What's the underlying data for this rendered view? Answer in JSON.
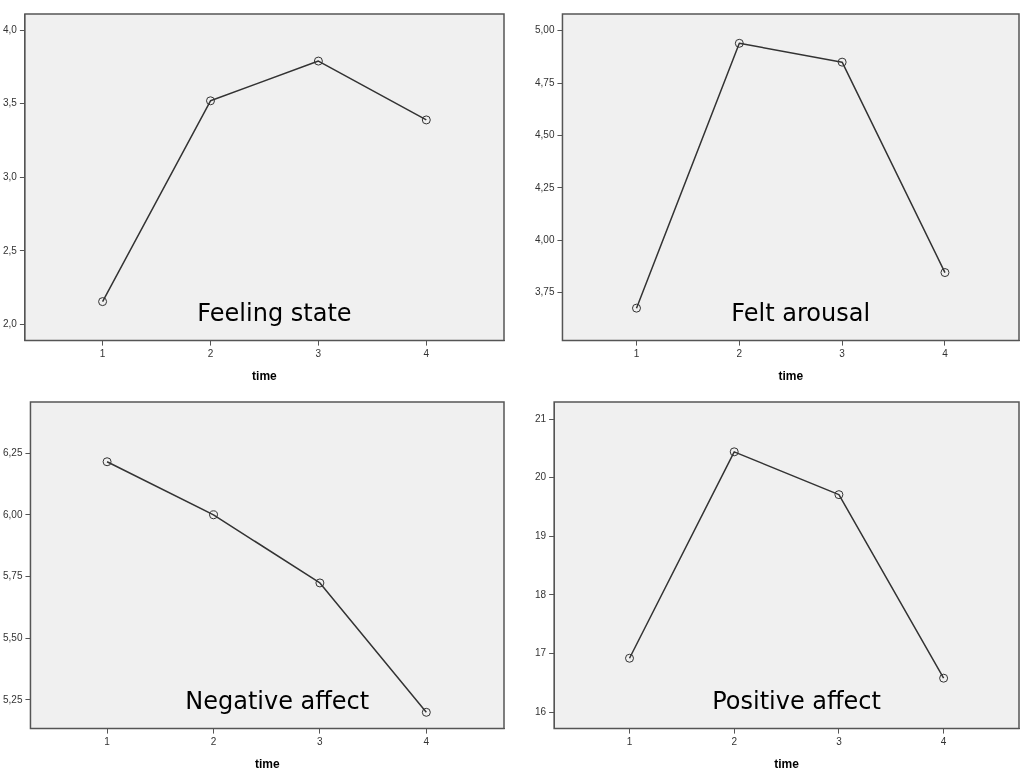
{
  "chart_data": [
    {
      "type": "line",
      "x": [
        1,
        2,
        3,
        4
      ],
      "xlim": [
        0.28,
        4.72
      ],
      "xticks": [
        1,
        2,
        3,
        4
      ],
      "xlabel": "time",
      "ylim": [
        1.89,
        4.11
      ],
      "yticks": [
        {
          "value": 2.0,
          "label": "2,0"
        },
        {
          "value": 2.5,
          "label": "2,5"
        },
        {
          "value": 3.0,
          "label": "3,0"
        },
        {
          "value": 3.5,
          "label": "3,5"
        },
        {
          "value": 4.0,
          "label": "4,0"
        }
      ],
      "series": [
        {
          "color": "#333333",
          "values": [
            2.155,
            3.52,
            3.79,
            3.39
          ]
        }
      ],
      "marker": "circle",
      "line_style": "solid",
      "grid": false,
      "legend": false,
      "annotations": [
        "Feeling state"
      ]
    },
    {
      "type": "line",
      "x": [
        1,
        2,
        3,
        4
      ],
      "xlim": [
        0.28,
        4.72
      ],
      "xticks": [
        1,
        2,
        3,
        4
      ],
      "xlabel": "time",
      "ylim": [
        3.52,
        5.08
      ],
      "yticks": [
        {
          "value": 3.75,
          "label": "3,75"
        },
        {
          "value": 4.0,
          "label": "4,00"
        },
        {
          "value": 4.25,
          "label": "4,25"
        },
        {
          "value": 4.5,
          "label": "4,50"
        },
        {
          "value": 4.75,
          "label": "4,75"
        },
        {
          "value": 5.0,
          "label": "5,00"
        }
      ],
      "series": [
        {
          "color": "#333333",
          "values": [
            3.675,
            4.94,
            4.85,
            3.845
          ]
        }
      ],
      "marker": "circle",
      "line_style": "solid",
      "grid": false,
      "legend": false,
      "annotations": [
        "Felt arousal"
      ]
    },
    {
      "type": "line",
      "x": [
        1,
        2,
        3,
        4
      ],
      "xlim": [
        0.28,
        4.73
      ],
      "xticks": [
        1,
        2,
        3,
        4
      ],
      "xlabel": "time",
      "ylim": [
        5.134,
        6.457
      ],
      "yticks": [
        {
          "value": 5.25,
          "label": "5,25"
        },
        {
          "value": 5.5,
          "label": "5,50"
        },
        {
          "value": 5.75,
          "label": "5,75"
        },
        {
          "value": 6.0,
          "label": "6,00"
        },
        {
          "value": 6.25,
          "label": "6,25"
        }
      ],
      "series": [
        {
          "color": "#333333",
          "values": [
            6.215,
            6.0,
            5.724,
            5.2
          ]
        }
      ],
      "marker": "circle",
      "line_style": "solid",
      "grid": false,
      "legend": false,
      "annotations": [
        "Negative affect"
      ]
    },
    {
      "type": "line",
      "x": [
        1,
        2,
        3,
        4
      ],
      "xlim": [
        0.28,
        4.72
      ],
      "xticks": [
        1,
        2,
        3,
        4
      ],
      "xlabel": "time",
      "ylim": [
        15.72,
        21.29
      ],
      "yticks": [
        16,
        17,
        18,
        19,
        20,
        21
      ],
      "series": [
        {
          "color": "#333333",
          "values": [
            16.92,
            20.44,
            19.71,
            16.58
          ]
        }
      ],
      "marker": "circle",
      "line_style": "solid",
      "grid": false,
      "legend": false,
      "annotations": [
        "Positive affect"
      ]
    }
  ]
}
